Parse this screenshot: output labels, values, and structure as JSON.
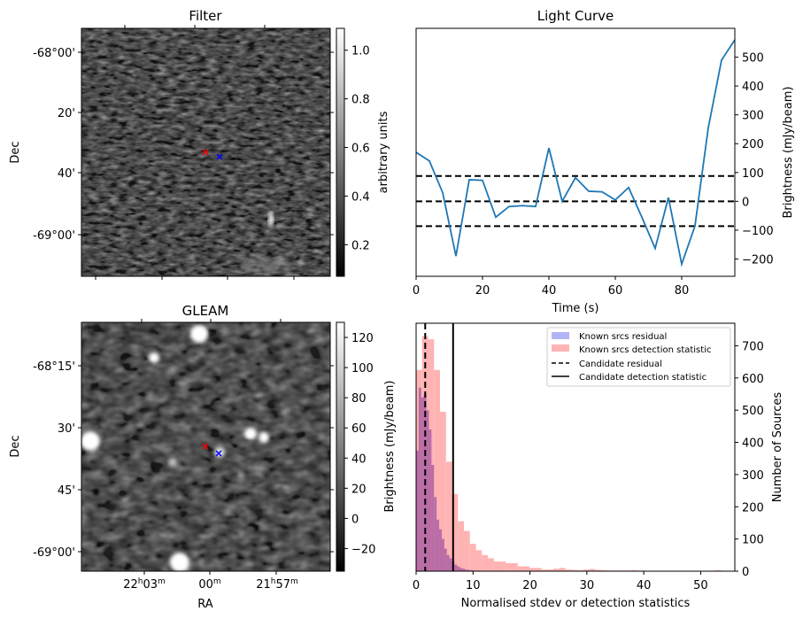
{
  "chart_data": [
    {
      "type": "heatmap",
      "panel": "filter",
      "title": "Filter",
      "ylabel": "Dec",
      "ytick_labels": [
        "-68°00'",
        "20'",
        "40'",
        "-69°00'"
      ],
      "colorbar": {
        "label": "arbitrary units",
        "ticks": [
          0.2,
          0.4,
          0.6,
          0.8,
          1.0
        ],
        "tick_labels": [
          "0.2",
          "0.4",
          "0.6",
          "0.8",
          "1.0"
        ],
        "range": [
          0.07,
          1.09
        ],
        "colormap": "gray"
      },
      "markers": [
        {
          "name": "candidate-red",
          "color": "#ff0000",
          "symbol": "x"
        },
        {
          "name": "candidate-blue",
          "color": "#0000ff",
          "symbol": "x"
        }
      ]
    },
    {
      "type": "line",
      "panel": "light-curve",
      "title": "Light Curve",
      "xlabel": "Time (s)",
      "ylabel": "Brightness (mJy/beam)",
      "xlim": [
        0,
        96
      ],
      "ylim": [
        -260,
        600
      ],
      "xticks": [
        0,
        20,
        40,
        60,
        80
      ],
      "yticks": [
        -200,
        -100,
        0,
        100,
        200,
        300,
        400,
        500
      ],
      "ytick_labels": [
        "−200",
        "−100",
        "0",
        "100",
        "200",
        "300",
        "400",
        "500"
      ],
      "series": [
        {
          "name": "light curve",
          "color": "#1f77b4",
          "x": [
            0,
            4,
            8,
            12,
            16,
            20,
            24,
            28,
            32,
            36,
            40,
            44,
            48,
            52,
            56,
            60,
            64,
            68,
            72,
            76,
            80,
            84,
            88,
            92,
            96
          ],
          "y": [
            170,
            140,
            30,
            -190,
            75,
            73,
            -55,
            -18,
            -15,
            -18,
            185,
            0,
            82,
            35,
            33,
            5,
            48,
            -55,
            -163,
            13,
            -218,
            -85,
            255,
            490,
            560
          ]
        }
      ],
      "hlines": [
        {
          "y": 88,
          "style": "dashed",
          "color": "#000000"
        },
        {
          "y": 0,
          "style": "dashed",
          "color": "#000000"
        },
        {
          "y": -86,
          "style": "dashed",
          "color": "#000000"
        }
      ]
    },
    {
      "type": "heatmap",
      "panel": "gleam",
      "title": "GLEAM",
      "xlabel": "RA",
      "ylabel": "Dec",
      "xtick_labels": [
        {
          "main": "22",
          "sup1": "h",
          "mid": "03",
          "sup2": "m"
        },
        {
          "main": "",
          "sup1": "",
          "mid": "00",
          "sup2": "m"
        },
        {
          "main": "21",
          "sup1": "h",
          "mid": "57",
          "sup2": "m"
        }
      ],
      "ytick_labels": [
        "-68°15'",
        "30'",
        "45'",
        "-69°00'"
      ],
      "colorbar": {
        "label": "Brightness (mJy/beam)",
        "ticks": [
          -20,
          0,
          20,
          40,
          60,
          80,
          100,
          120
        ],
        "tick_labels": [
          "−20",
          "0",
          "20",
          "40",
          "60",
          "80",
          "100",
          "120"
        ],
        "range": [
          -35,
          130
        ],
        "colormap": "gray"
      },
      "markers": [
        {
          "name": "candidate-red",
          "color": "#ff0000",
          "symbol": "x"
        },
        {
          "name": "candidate-blue",
          "color": "#0000ff",
          "symbol": "x"
        }
      ]
    },
    {
      "type": "bar",
      "panel": "histogram",
      "xlabel": "Normalised stdev or detection statistics",
      "ylabel": "Number of Sources",
      "xlim": [
        0,
        56
      ],
      "ylim": [
        0,
        770
      ],
      "xticks": [
        0,
        10,
        20,
        30,
        40,
        50
      ],
      "yticks": [
        0,
        100,
        200,
        300,
        400,
        500,
        600,
        700
      ],
      "legend_position": "top-right",
      "series": [
        {
          "name": "Known srcs residual",
          "color": "#b3b3f5",
          "bin_width": 0.45,
          "bin_start": 0,
          "values": [
            375,
            570,
            540,
            550,
            500,
            440,
            330,
            230,
            160,
            130,
            100,
            70,
            50,
            40,
            30,
            20,
            15,
            10,
            8,
            5,
            4,
            3,
            2,
            2,
            2,
            1,
            1,
            1,
            1,
            1,
            1,
            0,
            0,
            1,
            0,
            1,
            1,
            0,
            1,
            0,
            1,
            1,
            0,
            1,
            1,
            0,
            0,
            0,
            0,
            0,
            0,
            0,
            0,
            0,
            0,
            0,
            0,
            0,
            0,
            0,
            0,
            1,
            0,
            0,
            0,
            0,
            0,
            0,
            0,
            0,
            1
          ]
        },
        {
          "name": "Known srcs detection statistic",
          "color": "#ffb3b3",
          "bin_width": 1.05,
          "bin_start": 0,
          "values": [
            625,
            730,
            720,
            625,
            495,
            340,
            240,
            155,
            125,
            85,
            65,
            50,
            40,
            30,
            30,
            25,
            25,
            15,
            15,
            10,
            10,
            5,
            5,
            8,
            10,
            5,
            4,
            3,
            5,
            7,
            4,
            3,
            2,
            2,
            2,
            2,
            3,
            2,
            1,
            1,
            1,
            1,
            1,
            0,
            1,
            0,
            1,
            0,
            0,
            1,
            3,
            0
          ]
        }
      ],
      "vlines": [
        {
          "name": "Candidate residual",
          "x": 1.6,
          "style": "dashed",
          "color": "#000000"
        },
        {
          "name": "Candidate detection statistic",
          "x": 6.5,
          "style": "solid",
          "color": "#000000"
        }
      ]
    }
  ]
}
